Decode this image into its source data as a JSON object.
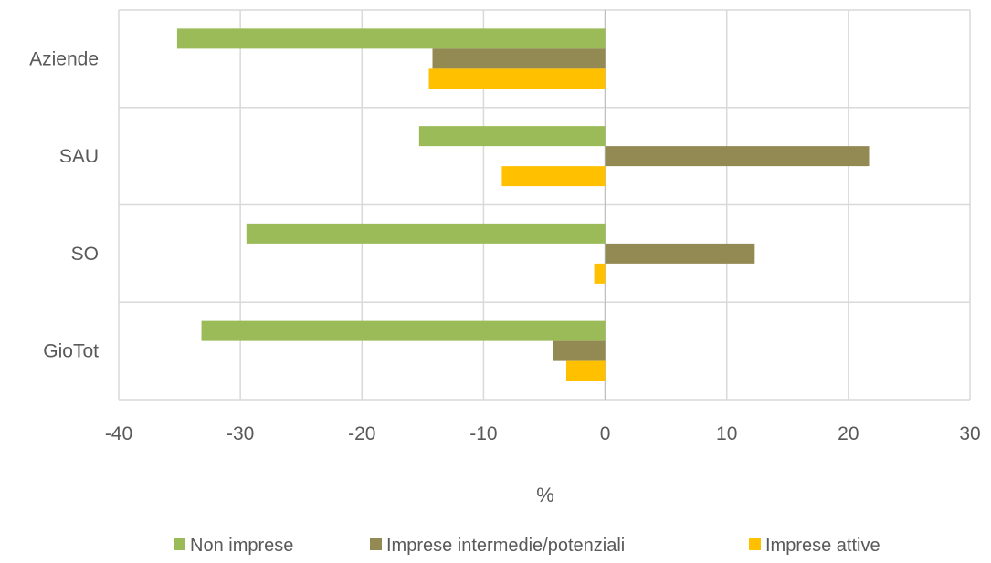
{
  "chart_data": {
    "type": "bar",
    "orientation": "horizontal",
    "categories": [
      "Aziende",
      "SAU",
      "SO",
      "GioTot"
    ],
    "series": [
      {
        "name": "Non imprese",
        "color": "#9BBB59",
        "values": [
          -35.2,
          -15.3,
          -29.5,
          -33.2
        ]
      },
      {
        "name": "Imprese intermedie/potenziali",
        "color": "#938953",
        "values": [
          -14.2,
          21.7,
          12.3,
          -4.3
        ]
      },
      {
        "name": "Imprese attive",
        "color": "#FFC000",
        "values": [
          -14.5,
          -8.5,
          -0.9,
          -3.2
        ]
      }
    ],
    "xlabel": "%",
    "xlim": [
      -40,
      30
    ],
    "xticks": [
      -40,
      -30,
      -20,
      -10,
      0,
      10,
      20,
      30
    ],
    "grid": true,
    "legend_position": "bottom"
  },
  "colors": {
    "grid": "#d9d9d9",
    "axis": "#bfbfbf",
    "text": "#595959"
  }
}
